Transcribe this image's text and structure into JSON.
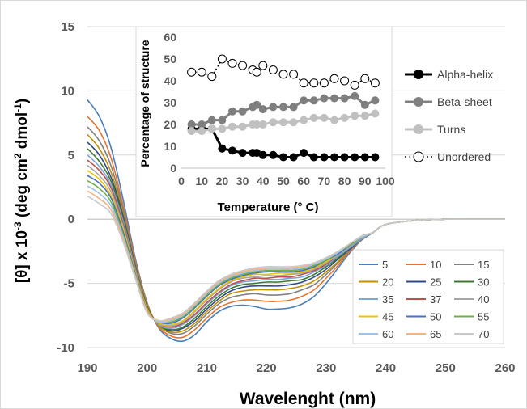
{
  "chart_data": [
    {
      "type": "line",
      "title": "",
      "xlabel": "Wavelenght (nm)",
      "ylabel_parts": [
        "[θ] x 10",
        "-3",
        " (deg cm",
        "2",
        " dmol",
        "-1",
        ")"
      ],
      "xlim": [
        190,
        260
      ],
      "ylim": [
        -10,
        15
      ],
      "xticks": [
        "190",
        "200",
        "210",
        "220",
        "230",
        "240",
        "250",
        "260"
      ],
      "yticks": [
        "-10",
        "-5",
        "0",
        "5",
        "10",
        "15"
      ],
      "grid": "horizontal",
      "legend_position": "bottom-right",
      "x": [
        190,
        192,
        194,
        196,
        198,
        200,
        202,
        204,
        206,
        208,
        210,
        212,
        214,
        216,
        218,
        220,
        222,
        224,
        226,
        228,
        230,
        232,
        234,
        236,
        238,
        240,
        245,
        250,
        255,
        260
      ],
      "series": [
        {
          "name": "5",
          "color": "#4a7ebb",
          "values": [
            9.3,
            8.0,
            5.5,
            1.5,
            -3.0,
            -6.5,
            -8.5,
            -9.3,
            -9.5,
            -9.0,
            -8.0,
            -7.2,
            -6.8,
            -6.7,
            -6.8,
            -7.0,
            -7.0,
            -6.9,
            -6.6,
            -6.0,
            -5.0,
            -3.8,
            -2.6,
            -1.6,
            -1.0,
            -0.4,
            -0.1,
            0.0,
            0.0,
            0.0
          ]
        },
        {
          "name": "10",
          "color": "#e8722d",
          "values": [
            8.0,
            6.9,
            4.7,
            1.0,
            -3.2,
            -6.6,
            -8.4,
            -9.1,
            -9.2,
            -8.6,
            -7.7,
            -6.9,
            -6.5,
            -6.3,
            -6.3,
            -6.4,
            -6.4,
            -6.3,
            -6.0,
            -5.5,
            -4.6,
            -3.6,
            -2.5,
            -1.6,
            -1.0,
            -0.4,
            -0.1,
            0.0,
            0.0,
            0.0
          ]
        },
        {
          "name": "15",
          "color": "#808080",
          "values": [
            7.2,
            6.1,
            4.1,
            0.7,
            -3.4,
            -6.7,
            -8.3,
            -8.9,
            -8.9,
            -8.3,
            -7.4,
            -6.6,
            -6.1,
            -5.9,
            -5.8,
            -5.9,
            -5.9,
            -5.8,
            -5.5,
            -5.1,
            -4.3,
            -3.4,
            -2.4,
            -1.6,
            -1.0,
            -0.4,
            -0.1,
            0.0,
            0.0,
            0.0
          ]
        },
        {
          "name": "20",
          "color": "#bf9000",
          "values": [
            6.6,
            5.5,
            3.6,
            0.4,
            -3.5,
            -6.7,
            -8.3,
            -8.8,
            -8.7,
            -8.1,
            -7.2,
            -6.4,
            -5.8,
            -5.6,
            -5.5,
            -5.5,
            -5.5,
            -5.4,
            -5.2,
            -4.8,
            -4.1,
            -3.3,
            -2.3,
            -1.5,
            -1.0,
            -0.4,
            -0.1,
            0.0,
            0.0,
            0.0
          ]
        },
        {
          "name": "25",
          "color": "#2f4a8a",
          "values": [
            6.0,
            5.0,
            3.2,
            0.2,
            -3.6,
            -6.8,
            -8.2,
            -8.7,
            -8.5,
            -7.9,
            -7.0,
            -6.2,
            -5.6,
            -5.3,
            -5.2,
            -5.2,
            -5.2,
            -5.1,
            -4.9,
            -4.5,
            -3.9,
            -3.1,
            -2.3,
            -1.5,
            -1.0,
            -0.4,
            -0.1,
            0.0,
            0.0,
            0.0
          ]
        },
        {
          "name": "30",
          "color": "#3e7b32",
          "values": [
            5.5,
            4.5,
            2.9,
            0.0,
            -3.7,
            -6.8,
            -8.2,
            -8.6,
            -8.4,
            -7.7,
            -6.8,
            -6.0,
            -5.4,
            -5.1,
            -5.0,
            -4.9,
            -4.9,
            -4.8,
            -4.7,
            -4.3,
            -3.7,
            -3.0,
            -2.2,
            -1.5,
            -1.0,
            -0.4,
            -0.1,
            0.0,
            0.0,
            0.0
          ]
        },
        {
          "name": "35",
          "color": "#7ba7d7",
          "values": [
            5.0,
            4.1,
            2.6,
            -0.2,
            -3.8,
            -6.9,
            -8.2,
            -8.5,
            -8.2,
            -7.5,
            -6.6,
            -5.8,
            -5.2,
            -4.9,
            -4.8,
            -4.7,
            -4.7,
            -4.6,
            -4.5,
            -4.1,
            -3.6,
            -2.9,
            -2.2,
            -1.5,
            -1.0,
            -0.4,
            -0.1,
            0.0,
            0.0,
            0.0
          ]
        },
        {
          "name": "37",
          "color": "#c0504d",
          "values": [
            4.6,
            3.8,
            2.4,
            -0.4,
            -3.9,
            -6.9,
            -8.1,
            -8.4,
            -8.1,
            -7.4,
            -6.5,
            -5.7,
            -5.1,
            -4.8,
            -4.6,
            -4.6,
            -4.5,
            -4.5,
            -4.3,
            -4.0,
            -3.5,
            -2.8,
            -2.1,
            -1.4,
            -1.0,
            -0.4,
            -0.1,
            0.0,
            0.0,
            0.0
          ]
        },
        {
          "name": "40",
          "color": "#a6a6a6",
          "values": [
            4.2,
            3.4,
            2.1,
            -0.6,
            -4.0,
            -7.0,
            -8.1,
            -8.3,
            -8.0,
            -7.2,
            -6.3,
            -5.5,
            -4.9,
            -4.6,
            -4.5,
            -4.4,
            -4.4,
            -4.3,
            -4.2,
            -3.9,
            -3.4,
            -2.8,
            -2.1,
            -1.4,
            -1.0,
            -0.4,
            -0.1,
            0.0,
            0.0,
            0.0
          ]
        },
        {
          "name": "45",
          "color": "#f2c200",
          "values": [
            3.8,
            3.1,
            1.8,
            -0.8,
            -4.1,
            -7.0,
            -8.1,
            -8.2,
            -7.9,
            -7.1,
            -6.2,
            -5.4,
            -4.8,
            -4.5,
            -4.3,
            -4.3,
            -4.2,
            -4.2,
            -4.1,
            -3.8,
            -3.3,
            -2.7,
            -2.0,
            -1.4,
            -1.0,
            -0.4,
            -0.1,
            0.0,
            0.0,
            0.0
          ]
        },
        {
          "name": "50",
          "color": "#4472c4",
          "values": [
            3.4,
            2.8,
            1.6,
            -1.0,
            -4.2,
            -7.1,
            -8.0,
            -8.1,
            -7.7,
            -6.9,
            -6.0,
            -5.2,
            -4.7,
            -4.4,
            -4.2,
            -4.1,
            -4.1,
            -4.1,
            -4.0,
            -3.7,
            -3.2,
            -2.7,
            -2.0,
            -1.4,
            -1.0,
            -0.4,
            -0.1,
            0.0,
            0.0,
            0.0
          ]
        },
        {
          "name": "55",
          "color": "#70ad47",
          "values": [
            3.0,
            2.4,
            1.3,
            -1.2,
            -4.3,
            -7.1,
            -8.0,
            -8.0,
            -7.6,
            -6.8,
            -5.9,
            -5.1,
            -4.6,
            -4.3,
            -4.1,
            -4.0,
            -4.0,
            -4.0,
            -3.9,
            -3.6,
            -3.2,
            -2.6,
            -2.0,
            -1.4,
            -1.0,
            -0.4,
            -0.1,
            0.0,
            0.0,
            0.0
          ]
        },
        {
          "name": "60",
          "color": "#9dc3e6",
          "values": [
            2.6,
            2.0,
            1.0,
            -1.4,
            -4.4,
            -7.2,
            -8.0,
            -7.9,
            -7.5,
            -6.7,
            -5.8,
            -5.0,
            -4.5,
            -4.2,
            -4.0,
            -3.9,
            -3.9,
            -3.9,
            -3.8,
            -3.5,
            -3.1,
            -2.6,
            -1.9,
            -1.4,
            -1.0,
            -0.4,
            -0.1,
            0.0,
            0.0,
            0.0
          ]
        },
        {
          "name": "65",
          "color": "#f4b183",
          "values": [
            2.2,
            1.6,
            0.7,
            -1.6,
            -4.5,
            -7.2,
            -7.9,
            -7.8,
            -7.4,
            -6.6,
            -5.7,
            -4.9,
            -4.4,
            -4.1,
            -3.9,
            -3.8,
            -3.8,
            -3.8,
            -3.7,
            -3.4,
            -3.0,
            -2.5,
            -1.9,
            -1.3,
            -1.0,
            -0.4,
            -0.1,
            0.0,
            0.0,
            0.0
          ]
        },
        {
          "name": "70",
          "color": "#c9c9c9",
          "values": [
            1.8,
            1.2,
            0.4,
            -1.8,
            -4.6,
            -7.3,
            -7.9,
            -7.7,
            -7.3,
            -6.5,
            -5.6,
            -4.8,
            -4.3,
            -4.0,
            -3.8,
            -3.7,
            -3.7,
            -3.7,
            -3.6,
            -3.4,
            -3.0,
            -2.5,
            -1.9,
            -1.3,
            -1.0,
            -0.4,
            -0.1,
            0.0,
            0.0,
            0.0
          ]
        }
      ]
    },
    {
      "type": "line",
      "title": "",
      "xlabel": "Temperature (° C)",
      "ylabel": "Percentage of structure",
      "xlim": [
        0,
        100
      ],
      "ylim": [
        0,
        60
      ],
      "xticks": [
        "0",
        "10",
        "20",
        "30",
        "40",
        "50",
        "60",
        "70",
        "80",
        "90",
        "100"
      ],
      "yticks": [
        "0",
        "10",
        "20",
        "30",
        "40",
        "50",
        "60"
      ],
      "grid": "none",
      "legend_position": "right",
      "x": [
        5,
        10,
        15,
        20,
        25,
        30,
        35,
        37,
        40,
        45,
        50,
        55,
        60,
        65,
        70,
        75,
        80,
        85,
        90,
        95
      ],
      "series": [
        {
          "name": "Alpha-helix",
          "color": "#000000",
          "marker": "filled",
          "line": "solid",
          "values": [
            18,
            18,
            18,
            9,
            8,
            7,
            7,
            7,
            6,
            6,
            5,
            5,
            7,
            5,
            5,
            5,
            5,
            5,
            5,
            5
          ]
        },
        {
          "name": "Beta-sheet",
          "color": "#7f7f7f",
          "marker": "filled",
          "line": "solid",
          "values": [
            20,
            20,
            22,
            22,
            26,
            26,
            28,
            29,
            27,
            28,
            28,
            28,
            31,
            31,
            32,
            32,
            32,
            33,
            29,
            31
          ]
        },
        {
          "name": "Turns",
          "color": "#c0c0c0",
          "marker": "filled",
          "line": "solid",
          "values": [
            17,
            17,
            18,
            18,
            19,
            19,
            20,
            20,
            20,
            21,
            21,
            21,
            22,
            23,
            23,
            22,
            23,
            24,
            24,
            25
          ]
        },
        {
          "name": "Unordered",
          "color": "#000000",
          "marker": "open",
          "line": "dotted",
          "values": [
            44,
            44,
            42,
            50,
            48,
            47,
            45,
            44,
            47,
            45,
            43,
            43,
            39,
            39,
            39,
            41,
            40,
            38,
            41,
            39
          ]
        }
      ]
    }
  ]
}
